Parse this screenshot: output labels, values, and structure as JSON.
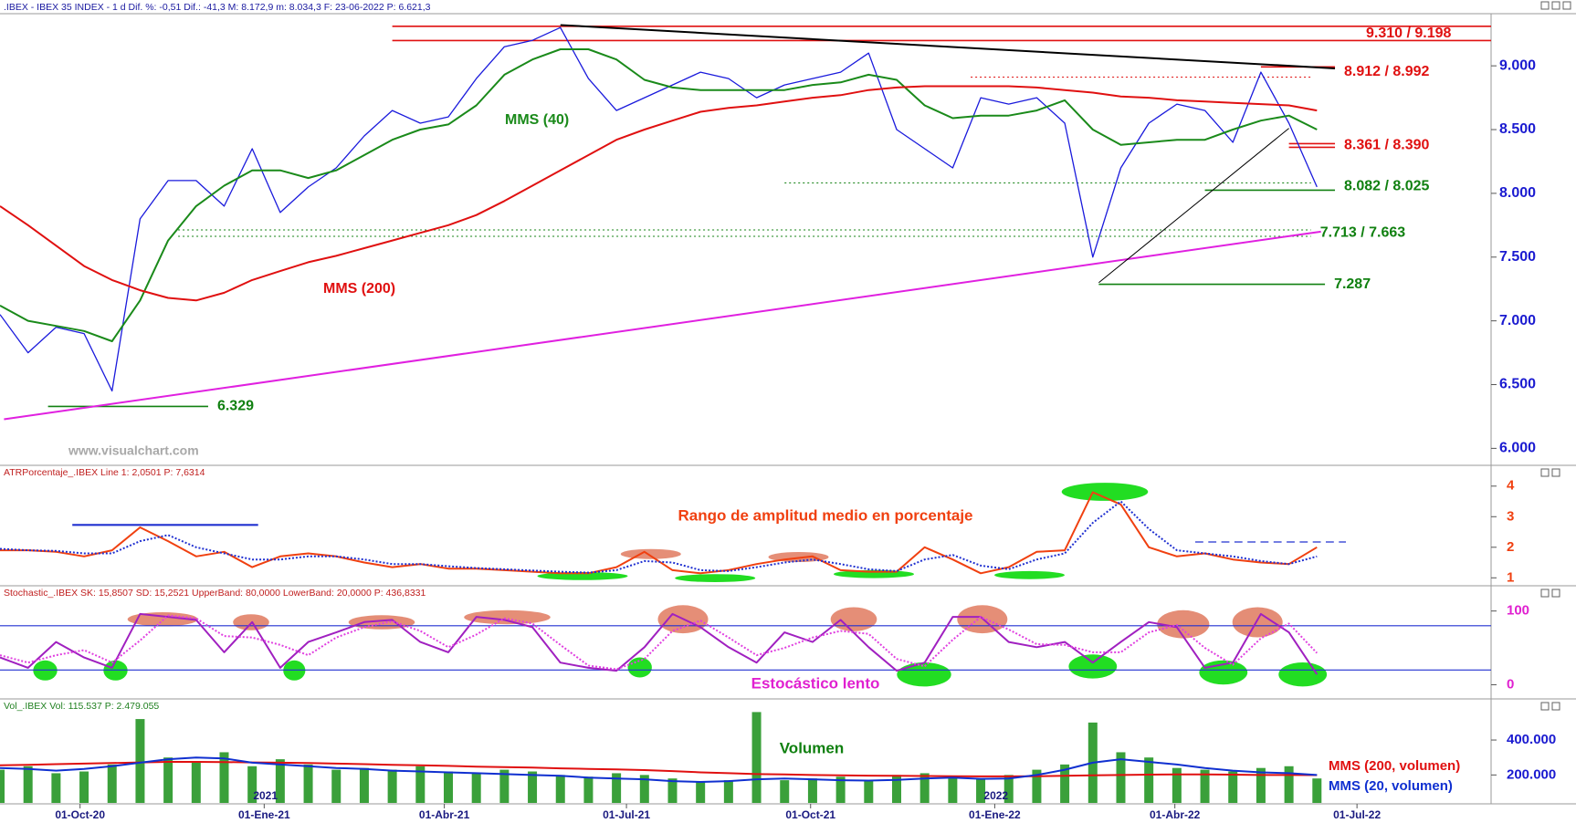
{
  "chart_data": [
    {
      "type": "line",
      "title": ".IBEX - IBEX 35 INDEX - 1 d Dif. %: -0,51 Dif.: -41,3 M: 8.172,9 m: 8.034,3 F: 23-06-2022 P: 6.621,3",
      "title_color": "#1a1aa0",
      "watermark": "www.visualchart.com",
      "x": [
        "2020-08-22",
        "2020-09-05",
        "2020-09-19",
        "2020-10-03",
        "2020-10-17",
        "2020-10-31",
        "2020-11-14",
        "2020-11-28",
        "2020-12-12",
        "2020-12-26",
        "2021-01-09",
        "2021-01-23",
        "2021-02-06",
        "2021-02-20",
        "2021-03-06",
        "2021-03-20",
        "2021-04-03",
        "2021-04-17",
        "2021-05-01",
        "2021-05-15",
        "2021-05-29",
        "2021-06-12",
        "2021-06-26",
        "2021-07-10",
        "2021-07-24",
        "2021-08-07",
        "2021-08-21",
        "2021-09-04",
        "2021-09-18",
        "2021-10-02",
        "2021-10-16",
        "2021-10-30",
        "2021-11-13",
        "2021-11-27",
        "2021-12-11",
        "2021-12-25",
        "2022-01-08",
        "2022-01-22",
        "2022-02-05",
        "2022-02-19",
        "2022-03-05",
        "2022-03-19",
        "2022-04-02",
        "2022-04-16",
        "2022-04-30",
        "2022-05-14",
        "2022-05-28",
        "2022-06-11"
      ],
      "xlim": [
        "2020-08-22",
        "2022-09-06"
      ],
      "ylim": [
        5874,
        9409
      ],
      "yticks": [
        {
          "value": 9000,
          "label": "9.000"
        },
        {
          "value": 8500,
          "label": "8.500"
        },
        {
          "value": 8000,
          "label": "8.000"
        },
        {
          "value": 7500,
          "label": "7.500"
        },
        {
          "value": 7000,
          "label": "7.000"
        },
        {
          "value": 6500,
          "label": "6.500"
        },
        {
          "value": 6000,
          "label": "6.000"
        }
      ],
      "axis_color": "#1a1ad0",
      "series": [
        {
          "color": "#1a1adc",
          "values": [
            7050,
            6750,
            6950,
            6900,
            6450,
            7800,
            8100,
            8100,
            7900,
            8350,
            7850,
            8050,
            8200,
            8450,
            8650,
            8550,
            8600,
            8900,
            9150,
            9200,
            9300,
            8900,
            8650,
            8750,
            8850,
            8950,
            8900,
            8750,
            8850,
            8900,
            8950,
            9100,
            8500,
            8350,
            8200,
            8750,
            8700,
            8750,
            8550,
            7500,
            8200,
            8550,
            8700,
            8650,
            8400,
            8950,
            8550,
            8050
          ]
        },
        {
          "name": "MMS (40)",
          "color": "#1a8a1a",
          "values": [
            7120,
            7000,
            6960,
            6920,
            6840,
            7160,
            7630,
            7900,
            8060,
            8180,
            8180,
            8120,
            8180,
            8300,
            8420,
            8500,
            8540,
            8690,
            8930,
            9050,
            9130,
            9130,
            9050,
            8890,
            8830,
            8810,
            8810,
            8810,
            8810,
            8850,
            8870,
            8930,
            8890,
            8690,
            8590,
            8610,
            8610,
            8650,
            8730,
            8500,
            8380,
            8400,
            8420,
            8420,
            8500,
            8570,
            8610,
            8500
          ]
        },
        {
          "name": "MMS (200)",
          "color": "#e01010",
          "values": [
            7900,
            7750,
            7590,
            7430,
            7320,
            7240,
            7180,
            7160,
            7220,
            7320,
            7390,
            7460,
            7510,
            7570,
            7630,
            7690,
            7750,
            7830,
            7940,
            8060,
            8180,
            8300,
            8420,
            8500,
            8570,
            8640,
            8670,
            8690,
            8720,
            8750,
            8770,
            8810,
            8830,
            8840,
            8840,
            8840,
            8840,
            8830,
            8810,
            8790,
            8760,
            8750,
            8730,
            8720,
            8710,
            8700,
            8690,
            8650
          ]
        }
      ],
      "levels": [
        {
          "label": "9.310 / 9.198",
          "color": "#e01010",
          "lines": [
            {
              "x": [
                "2021-03-06",
                "2022-09-06"
              ],
              "y": [
                9310,
                9310
              ],
              "dash": false
            },
            {
              "x": [
                "2021-03-06",
                "2022-09-06"
              ],
              "y": [
                9198,
                9198
              ],
              "dash": false
            }
          ]
        },
        {
          "label": "8.912 / 8.992",
          "color": "#e01010",
          "lines": [
            {
              "x": [
                "2021-12-20",
                "2022-06-08"
              ],
              "y": [
                8912,
                8912
              ],
              "dash": true
            },
            {
              "x": [
                "2022-05-14",
                "2022-06-20"
              ],
              "y": [
                8992,
                8992
              ],
              "dash": false
            }
          ]
        },
        {
          "label": "8.361 / 8.390",
          "color": "#e01010",
          "lines": [
            {
              "x": [
                "2022-05-28",
                "2022-06-20"
              ],
              "y": [
                8390,
                8390
              ],
              "dash": false
            },
            {
              "x": [
                "2022-05-28",
                "2022-06-20"
              ],
              "y": [
                8361,
                8361
              ],
              "dash": false
            }
          ]
        },
        {
          "label": "8.082 / 8.025",
          "color": "#108010",
          "lines": [
            {
              "x": [
                "2021-09-18",
                "2022-06-08"
              ],
              "y": [
                8082,
                8082
              ],
              "dash": true
            },
            {
              "x": [
                "2022-04-16",
                "2022-06-20"
              ],
              "y": [
                8025,
                8025
              ],
              "dash": false
            }
          ]
        },
        {
          "label": "7.713 / 7.663",
          "color": "#108010",
          "lines": [
            {
              "x": [
                "2020-11-19",
                "2022-06-08"
              ],
              "y": [
                7713,
                7713
              ],
              "dash": true
            },
            {
              "x": [
                "2020-11-19",
                "2022-06-08"
              ],
              "y": [
                7663,
                7663
              ],
              "dash": true
            }
          ]
        },
        {
          "label": "7.287",
          "color": "#108010",
          "lines": [
            {
              "x": [
                "2022-02-22",
                "2022-06-15"
              ],
              "y": [
                7287,
                7287
              ],
              "dash": false
            }
          ]
        },
        {
          "label": "6.329",
          "color": "#108010",
          "lines": [
            {
              "x": [
                "2020-09-15",
                "2020-12-04"
              ],
              "y": [
                6329,
                6329
              ],
              "dash": false
            }
          ]
        }
      ],
      "trendlines": [
        {
          "x": [
            "2021-05-29",
            "2022-06-20"
          ],
          "y": [
            9320,
            8980
          ],
          "color": "#000000"
        },
        {
          "x": [
            "2020-08-24",
            "2022-06-13"
          ],
          "y": [
            6228,
            7700
          ],
          "color": "#e020e0"
        },
        {
          "x": [
            "2022-02-22",
            "2022-05-28"
          ],
          "y": [
            7300,
            8510
          ],
          "color": "#000000"
        }
      ]
    },
    {
      "type": "line",
      "title": "ATRPorcentaje_.IBEX Line 1: 2,0501 P: 7,6314",
      "title_color": "#c02020",
      "annotation": "Rango de amplitud medio en porcentaje",
      "annotation_color": "#f04010",
      "ylim": [
        0.77,
        4.65
      ],
      "yticks": [
        1,
        2,
        3,
        4
      ],
      "axis_color": "#f04010",
      "series": [
        {
          "color": "#f04010",
          "values": [
            1.9,
            1.9,
            1.85,
            1.7,
            1.9,
            2.65,
            2.2,
            1.7,
            1.85,
            1.35,
            1.7,
            1.8,
            1.7,
            1.5,
            1.35,
            1.45,
            1.3,
            1.3,
            1.25,
            1.2,
            1.15,
            1.15,
            1.35,
            1.85,
            1.25,
            1.15,
            1.25,
            1.45,
            1.6,
            1.7,
            1.25,
            1.2,
            1.2,
            2.0,
            1.6,
            1.15,
            1.35,
            1.85,
            1.9,
            3.8,
            3.4,
            2.0,
            1.7,
            1.8,
            1.6,
            1.5,
            1.45,
            2.0
          ]
        },
        {
          "color": "#2030d0",
          "dash": true,
          "values": [
            1.95,
            1.9,
            1.88,
            1.8,
            1.8,
            2.2,
            2.4,
            2.0,
            1.8,
            1.6,
            1.6,
            1.7,
            1.7,
            1.6,
            1.45,
            1.45,
            1.38,
            1.32,
            1.28,
            1.24,
            1.2,
            1.17,
            1.25,
            1.55,
            1.5,
            1.25,
            1.22,
            1.35,
            1.5,
            1.6,
            1.45,
            1.28,
            1.22,
            1.6,
            1.75,
            1.4,
            1.28,
            1.6,
            1.8,
            2.8,
            3.5,
            2.6,
            1.9,
            1.8,
            1.7,
            1.55,
            1.45,
            1.7
          ]
        }
      ]
    },
    {
      "type": "line",
      "title": "Stochastic_.IBEX SK: 15,8507 SD: 15,2521 UpperBand: 80,0000 LowerBand: 20,0000 P: 436,8331",
      "title_color": "#c02020",
      "annotation": "Estocástico lento",
      "annotation_color": "#e020d0",
      "ylim": [
        -18,
        133
      ],
      "yticks": [
        0,
        100
      ],
      "axis_color": "#e020d0",
      "bands": [
        80,
        20
      ],
      "band_color": "#2030d0",
      "series": [
        {
          "color": "#a020c0",
          "values": [
            37,
            23,
            58,
            37,
            23,
            96,
            92,
            88,
            44,
            85,
            23,
            58,
            71,
            85,
            88,
            58,
            44,
            92,
            88,
            78,
            30,
            23,
            19,
            51,
            96,
            78,
            51,
            30,
            71,
            58,
            88,
            51,
            19,
            30,
            92,
            92,
            58,
            51,
            58,
            30,
            58,
            85,
            78,
            23,
            30,
            96,
            71,
            14
          ]
        },
        {
          "color": "#e040e0",
          "dash": true,
          "values": [
            40,
            30,
            40,
            47,
            30,
            60,
            94,
            90,
            66,
            64,
            54,
            40,
            64,
            78,
            86,
            73,
            51,
            68,
            90,
            83,
            54,
            26,
            21,
            35,
            73,
            87,
            64,
            40,
            50,
            64,
            73,
            69,
            35,
            25,
            61,
            92,
            75,
            55,
            54,
            44,
            44,
            71,
            81,
            50,
            27,
            63,
            83,
            43
          ]
        }
      ]
    },
    {
      "type": "bar",
      "title": "Vol_.IBEX Vol: 115.537 P: 2.479.055",
      "title_color": "#208020",
      "annotation": "Volumen",
      "annotation_color": "#108010",
      "color": "#3aa03a",
      "values": [
        230000,
        250000,
        210000,
        220000,
        260000,
        520000,
        300000,
        280000,
        330000,
        250000,
        290000,
        260000,
        230000,
        240000,
        230000,
        250000,
        220000,
        210000,
        230000,
        220000,
        200000,
        190000,
        210000,
        200000,
        180000,
        160000,
        170000,
        560000,
        170000,
        180000,
        190000,
        170000,
        200000,
        210000,
        190000,
        180000,
        200000,
        230000,
        260000,
        500000,
        330000,
        300000,
        240000,
        230000,
        220000,
        240000,
        250000,
        180000
      ],
      "ylim": [
        40000,
        630000
      ],
      "yticks": [
        {
          "value": 400000,
          "label": "400.000"
        },
        {
          "value": 200000,
          "label": "200.000"
        }
      ],
      "axis_color": "#1a1ad0",
      "series": [
        {
          "name": "MMS (200, volumen)",
          "color": "#e01010",
          "values": [
            255000,
            258000,
            262000,
            265000,
            268000,
            272000,
            275000,
            275000,
            274000,
            272000,
            270000,
            268000,
            265000,
            262000,
            258000,
            255000,
            252000,
            248000,
            245000,
            242000,
            238000,
            235000,
            232000,
            228000,
            222000,
            215000,
            210000,
            205000,
            203000,
            200000,
            198000,
            196000,
            195000,
            194000,
            193000,
            192000,
            192000,
            193000,
            195000,
            198000,
            200000,
            202000,
            203000,
            203000,
            202000,
            200000,
            200000,
            199000
          ]
        },
        {
          "name": "MMS (20, volumen)",
          "color": "#1030d0",
          "values": [
            240000,
            235000,
            225000,
            235000,
            250000,
            270000,
            290000,
            300000,
            295000,
            270000,
            260000,
            250000,
            240000,
            235000,
            225000,
            220000,
            215000,
            210000,
            205000,
            200000,
            195000,
            185000,
            180000,
            175000,
            165000,
            160000,
            165000,
            175000,
            180000,
            175000,
            170000,
            168000,
            172000,
            180000,
            185000,
            178000,
            180000,
            200000,
            230000,
            270000,
            290000,
            275000,
            260000,
            240000,
            225000,
            215000,
            210000,
            200000
          ]
        }
      ],
      "xticks": [
        {
          "value": "2020-10-01",
          "label": "01-Oct-20"
        },
        {
          "value": "2021-01-01",
          "label": "01-Ene-21"
        },
        {
          "value": "2021-04-01",
          "label": "01-Abr-21"
        },
        {
          "value": "2021-07-01",
          "label": "01-Jul-21"
        },
        {
          "value": "2021-10-01",
          "label": "01-Oct-21"
        },
        {
          "value": "2022-01-01",
          "label": "01-Ene-22"
        },
        {
          "value": "2022-04-01",
          "label": "01-Abr-22"
        },
        {
          "value": "2022-07-01",
          "label": "01-Jul-22"
        }
      ],
      "year_labels": [
        {
          "value": "2021-01-01",
          "label": "2021"
        },
        {
          "value": "2022-01-01",
          "label": "2022"
        }
      ]
    }
  ]
}
